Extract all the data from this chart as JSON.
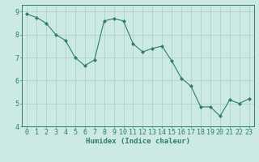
{
  "x": [
    0,
    1,
    2,
    3,
    4,
    5,
    6,
    7,
    8,
    9,
    10,
    11,
    12,
    13,
    14,
    15,
    16,
    17,
    18,
    19,
    20,
    21,
    22,
    23
  ],
  "y": [
    8.9,
    8.75,
    8.5,
    8.0,
    7.75,
    7.0,
    6.65,
    6.9,
    8.6,
    8.7,
    8.6,
    7.6,
    7.25,
    7.4,
    7.5,
    6.85,
    6.1,
    5.75,
    4.85,
    4.85,
    4.45,
    5.15,
    5.0,
    5.2
  ],
  "line_color": "#2e7d6e",
  "marker": "D",
  "marker_size": 2,
  "bg_color": "#cce9e3",
  "grid_color": "#aacfc8",
  "axis_color": "#2e7d6e",
  "xlabel": "Humidex (Indice chaleur)",
  "xlim": [
    -0.5,
    23.5
  ],
  "ylim": [
    4,
    9.3
  ],
  "yticks": [
    4,
    5,
    6,
    7,
    8,
    9
  ],
  "xticks": [
    0,
    1,
    2,
    3,
    4,
    5,
    6,
    7,
    8,
    9,
    10,
    11,
    12,
    13,
    14,
    15,
    16,
    17,
    18,
    19,
    20,
    21,
    22,
    23
  ],
  "label_fontsize": 6.5,
  "tick_fontsize": 6.0
}
